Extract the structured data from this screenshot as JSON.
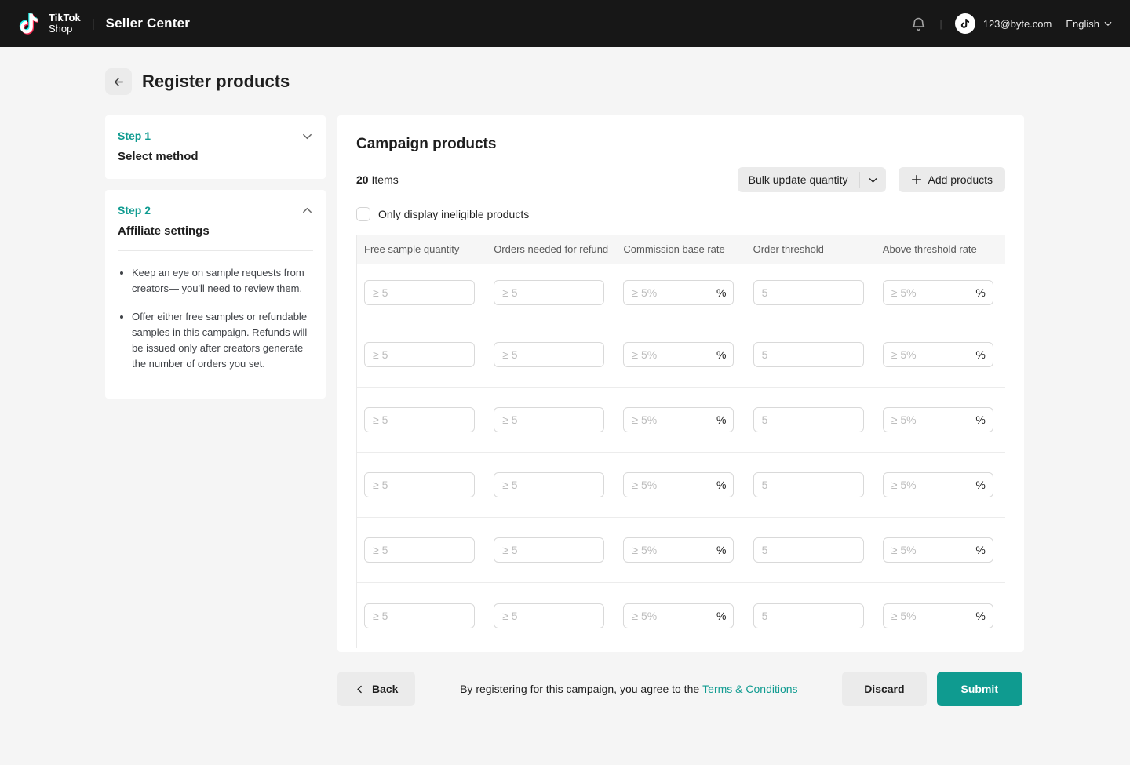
{
  "colors": {
    "accent": "#0f9b90",
    "topbar_bg": "#171717",
    "page_bg": "#f5f5f5",
    "button_gray": "#ebebeb",
    "logo_cyan": "#25f4ee",
    "logo_red": "#fe2c55"
  },
  "topbar": {
    "logo_line1": "TikTok",
    "logo_line2": "Shop",
    "app_name": "Seller Center",
    "account_email": "123@byte.com",
    "language": "English"
  },
  "page": {
    "title": "Register products"
  },
  "sidebar": {
    "steps": [
      {
        "step": "Step 1",
        "title": "Select method"
      },
      {
        "step": "Step 2",
        "title": "Affiliate settings",
        "notes": [
          "Keep an eye on sample requests from creators— you'll need to review them.",
          "Offer either free samples or refundable samples in this campaign. Refunds will be issued only after creators generate the number of orders you set."
        ]
      }
    ]
  },
  "main": {
    "title": "Campaign products",
    "items_count": "20",
    "items_label": "Items",
    "bulk_update_label": "Bulk update quantity",
    "add_products_label": "Add products",
    "filter_checkbox_label": "Only display ineligible products",
    "table": {
      "row_count": 6,
      "columns": [
        {
          "key": "free-sample-quantity",
          "label": "Free sample quantity",
          "placeholder": "≥ 5",
          "suffix": ""
        },
        {
          "key": "orders-needed-for-refund",
          "label": "Orders needed for refund",
          "placeholder": "≥ 5",
          "suffix": ""
        },
        {
          "key": "commission-base-rate",
          "label": "Commission base rate",
          "placeholder": "≥ 5%",
          "suffix": "%"
        },
        {
          "key": "order-threshold",
          "label": "Order threshold",
          "placeholder": "5",
          "suffix": ""
        },
        {
          "key": "above-threshold-rate",
          "label": "Above threshold rate",
          "placeholder": "≥ 5%",
          "suffix": "%"
        }
      ]
    }
  },
  "footer": {
    "back_label": "Back",
    "agreement_text": "By registering for this campaign, you agree to the",
    "terms_link": "Terms & Conditions",
    "discard_label": "Discard",
    "submit_label": "Submit"
  }
}
